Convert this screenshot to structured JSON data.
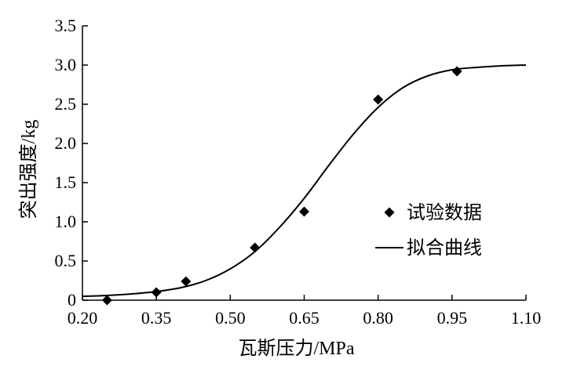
{
  "chart_data": {
    "type": "scatter",
    "xlabel": "瓦斯压力/MPa",
    "ylabel": "突出强度/kg",
    "xlim": [
      0.2,
      1.1
    ],
    "ylim": [
      0,
      3.5
    ],
    "x_ticks": [
      "0.20",
      "0.35",
      "0.50",
      "0.65",
      "0.80",
      "0.95",
      "1.10"
    ],
    "y_ticks": [
      "0",
      "0.5",
      "1.0",
      "1.5",
      "2.0",
      "2.5",
      "3.0",
      "3.5"
    ],
    "grid": false,
    "legend_position": "right",
    "series": [
      {
        "name": "试验数据",
        "kind": "scatter",
        "marker": "diamond",
        "color": "#000000",
        "points": [
          {
            "x": 0.25,
            "y": 0.0
          },
          {
            "x": 0.35,
            "y": 0.1
          },
          {
            "x": 0.41,
            "y": 0.24
          },
          {
            "x": 0.55,
            "y": 0.67
          },
          {
            "x": 0.65,
            "y": 1.13
          },
          {
            "x": 0.8,
            "y": 2.56
          },
          {
            "x": 0.96,
            "y": 2.92
          }
        ]
      },
      {
        "name": "拟合曲线",
        "kind": "line",
        "color": "#000000",
        "points": [
          {
            "x": 0.2,
            "y": 0.05
          },
          {
            "x": 0.25,
            "y": 0.06
          },
          {
            "x": 0.3,
            "y": 0.08
          },
          {
            "x": 0.35,
            "y": 0.11
          },
          {
            "x": 0.4,
            "y": 0.16
          },
          {
            "x": 0.45,
            "y": 0.25
          },
          {
            "x": 0.5,
            "y": 0.4
          },
          {
            "x": 0.55,
            "y": 0.62
          },
          {
            "x": 0.6,
            "y": 0.93
          },
          {
            "x": 0.65,
            "y": 1.3
          },
          {
            "x": 0.7,
            "y": 1.72
          },
          {
            "x": 0.75,
            "y": 2.12
          },
          {
            "x": 0.8,
            "y": 2.46
          },
          {
            "x": 0.85,
            "y": 2.71
          },
          {
            "x": 0.9,
            "y": 2.86
          },
          {
            "x": 0.95,
            "y": 2.94
          },
          {
            "x": 1.0,
            "y": 2.97
          },
          {
            "x": 1.05,
            "y": 2.99
          },
          {
            "x": 1.1,
            "y": 3.0
          }
        ]
      }
    ]
  }
}
